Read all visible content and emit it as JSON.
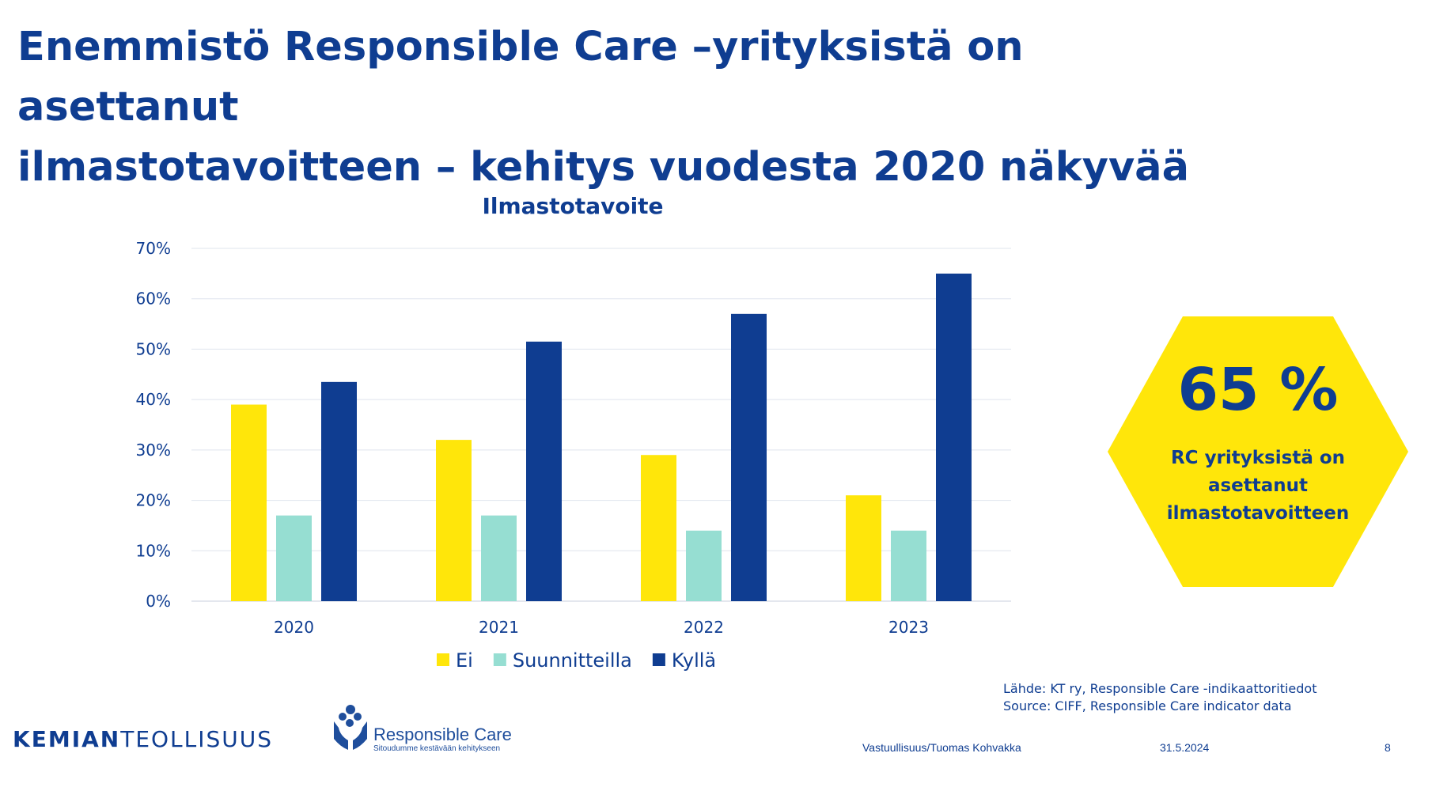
{
  "title": {
    "line1": "Enemmistö Responsible Care –yrityksistä on asettanut",
    "line2": "ilmastotavoitteen – kehitys vuodesta 2020 näkyvää"
  },
  "chart_data": {
    "type": "bar",
    "title": "Ilmastotavoite",
    "categories": [
      "2020",
      "2021",
      "2022",
      "2023"
    ],
    "series": [
      {
        "name": "Ei",
        "color": "#ffe60a",
        "values": [
          39,
          32,
          29,
          21
        ]
      },
      {
        "name": "Suunnitteilla",
        "color": "#96ded2",
        "values": [
          17,
          17,
          14,
          14
        ]
      },
      {
        "name": "Kyllä",
        "color": "#0f3d91",
        "values": [
          43.5,
          51.5,
          57,
          65
        ]
      }
    ],
    "ylim": [
      0,
      70
    ],
    "yticks": [
      0,
      10,
      20,
      30,
      40,
      50,
      60,
      70
    ],
    "ytick_labels": [
      "0%",
      "10%",
      "20%",
      "30%",
      "40%",
      "50%",
      "60%",
      "70%"
    ],
    "grid": true,
    "legend_position": "bottom"
  },
  "highlight": {
    "value": "65 %",
    "text": "RC yrityksistä on asettanut ilmastotavoitteen",
    "color": "#ffe60a"
  },
  "source": {
    "line1": "Lähde: KT ry, Responsible Care -indikaattoritiedot",
    "line2": "Source: CIFF, Responsible Care indicator data"
  },
  "footer": {
    "logo_bold": "KEMIAN",
    "logo_regular": "TEOLLISUUS",
    "rc_name": "Responsible Care",
    "rc_tagline": "Sitoudumme kestävään kehitykseen",
    "author": "Vastuullisuus/Tuomas Kohvakka",
    "date": "31.5.2024",
    "page": "8"
  },
  "colors": {
    "primary": "#0f3d91",
    "yellow": "#ffe60a",
    "teal": "#96ded2"
  }
}
